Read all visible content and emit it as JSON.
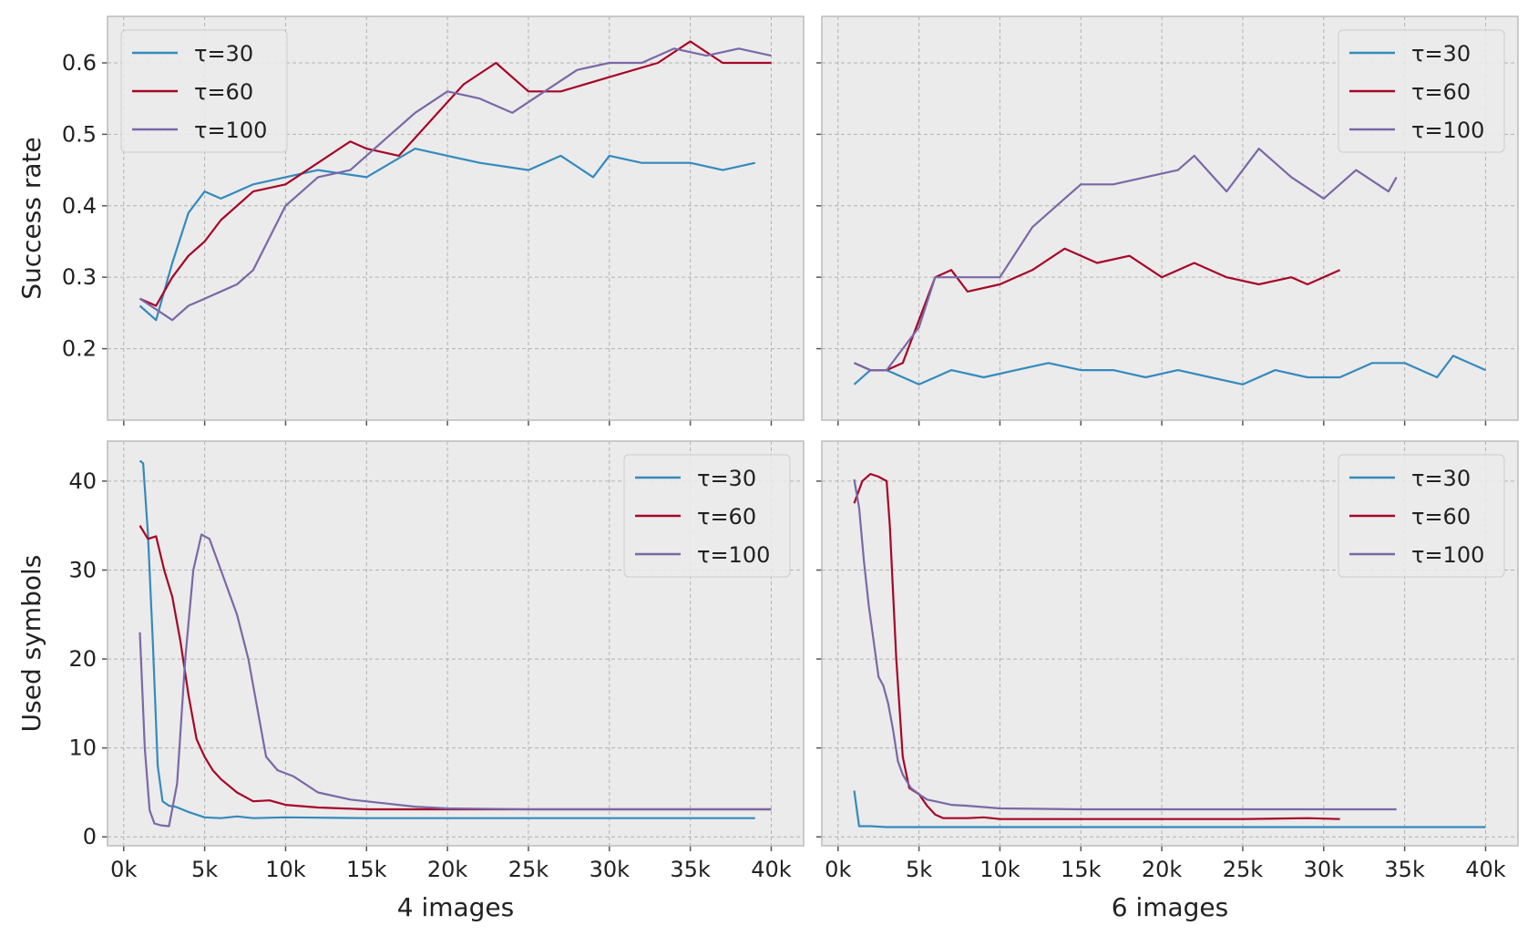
{
  "colors": {
    "tau30": "#348ABD",
    "tau60": "#A60628",
    "tau100": "#7A68A6",
    "axes_bg": "#EBEBEB",
    "grid": "#B2B2B2"
  },
  "legend_labels": [
    "τ=30",
    "τ=60",
    "τ=100"
  ],
  "x_tick_labels": [
    "0k",
    "5k",
    "10k",
    "15k",
    "20k",
    "25k",
    "30k",
    "35k",
    "40k"
  ],
  "chart_data": [
    {
      "panel": "top-left",
      "type": "line",
      "xlabel": "",
      "ylabel": "Success rate",
      "xlim": [
        -1000,
        42000
      ],
      "ylim": [
        0.1,
        0.665
      ],
      "yticks": [
        0.2,
        0.3,
        0.4,
        0.5,
        0.6
      ],
      "ytick_labels": [
        "0.2",
        "0.3",
        "0.4",
        "0.5",
        "0.6"
      ],
      "grid": true,
      "legend_position": "top-left",
      "series": [
        {
          "name": "τ=30",
          "x": [
            1000,
            2000,
            3000,
            4000,
            5000,
            6000,
            8000,
            10000,
            12000,
            15000,
            18000,
            20000,
            22000,
            25000,
            27000,
            29000,
            30000,
            32000,
            35000,
            37000,
            39000
          ],
          "y": [
            0.26,
            0.24,
            0.32,
            0.39,
            0.42,
            0.41,
            0.43,
            0.44,
            0.45,
            0.44,
            0.48,
            0.47,
            0.46,
            0.45,
            0.47,
            0.44,
            0.47,
            0.46,
            0.46,
            0.45,
            0.46
          ]
        },
        {
          "name": "τ=60",
          "x": [
            1000,
            2000,
            3000,
            4000,
            5000,
            6000,
            8000,
            10000,
            12000,
            14000,
            15000,
            17000,
            19000,
            21000,
            23000,
            25000,
            27000,
            30000,
            33000,
            35000,
            37000,
            40000
          ],
          "y": [
            0.27,
            0.26,
            0.3,
            0.33,
            0.35,
            0.38,
            0.42,
            0.43,
            0.46,
            0.49,
            0.48,
            0.47,
            0.52,
            0.57,
            0.6,
            0.56,
            0.56,
            0.58,
            0.6,
            0.63,
            0.6,
            0.6
          ]
        },
        {
          "name": "τ=100",
          "x": [
            1000,
            3000,
            4000,
            5000,
            7000,
            8000,
            10000,
            12000,
            14000,
            16000,
            18000,
            20000,
            22000,
            24000,
            26000,
            28000,
            30000,
            32000,
            34000,
            36000,
            38000,
            40000
          ],
          "y": [
            0.27,
            0.24,
            0.26,
            0.27,
            0.29,
            0.31,
            0.4,
            0.44,
            0.45,
            0.49,
            0.53,
            0.56,
            0.55,
            0.53,
            0.56,
            0.59,
            0.6,
            0.6,
            0.62,
            0.61,
            0.62,
            0.61
          ]
        }
      ]
    },
    {
      "panel": "top-right",
      "type": "line",
      "xlabel": "",
      "ylabel": "",
      "xlim": [
        -1000,
        42000
      ],
      "ylim": [
        0.1,
        0.665
      ],
      "yticks": [
        0.2,
        0.3,
        0.4,
        0.5,
        0.6
      ],
      "ytick_labels": [
        "",
        "",
        "",
        "",
        ""
      ],
      "grid": true,
      "legend_position": "top-right",
      "series": [
        {
          "name": "τ=30",
          "x": [
            1000,
            2000,
            3000,
            5000,
            7000,
            9000,
            11000,
            13000,
            15000,
            17000,
            19000,
            21000,
            23000,
            25000,
            27000,
            29000,
            31000,
            33000,
            35000,
            37000,
            38000,
            40000
          ],
          "y": [
            0.15,
            0.17,
            0.17,
            0.15,
            0.17,
            0.16,
            0.17,
            0.18,
            0.17,
            0.17,
            0.16,
            0.17,
            0.16,
            0.15,
            0.17,
            0.16,
            0.16,
            0.18,
            0.18,
            0.16,
            0.19,
            0.17
          ]
        },
        {
          "name": "τ=60",
          "x": [
            1000,
            2000,
            3000,
            4000,
            5000,
            6000,
            7000,
            8000,
            10000,
            12000,
            14000,
            16000,
            18000,
            20000,
            22000,
            24000,
            26000,
            28000,
            29000,
            31000
          ],
          "y": [
            0.18,
            0.17,
            0.17,
            0.18,
            0.24,
            0.3,
            0.31,
            0.28,
            0.29,
            0.31,
            0.34,
            0.32,
            0.33,
            0.3,
            0.32,
            0.3,
            0.29,
            0.3,
            0.29,
            0.31
          ]
        },
        {
          "name": "τ=100",
          "x": [
            1000,
            2000,
            3000,
            4000,
            5000,
            6000,
            8000,
            10000,
            12000,
            14000,
            15000,
            17000,
            19000,
            21000,
            22000,
            24000,
            26000,
            28000,
            30000,
            32000,
            34000,
            34500
          ],
          "y": [
            0.18,
            0.17,
            0.17,
            0.2,
            0.23,
            0.3,
            0.3,
            0.3,
            0.37,
            0.41,
            0.43,
            0.43,
            0.44,
            0.45,
            0.47,
            0.42,
            0.48,
            0.44,
            0.41,
            0.45,
            0.42,
            0.44
          ]
        }
      ]
    },
    {
      "panel": "bottom-left",
      "type": "line",
      "xlabel": "4 images",
      "ylabel": "Used symbols",
      "xlim": [
        -1000,
        42000
      ],
      "ylim": [
        -1,
        44.5
      ],
      "yticks": [
        0,
        10,
        20,
        30,
        40
      ],
      "ytick_labels": [
        "0",
        "10",
        "20",
        "30",
        "40"
      ],
      "grid": true,
      "legend_position": "top-right",
      "series": [
        {
          "name": "τ=30",
          "x": [
            1000,
            1200,
            1500,
            1800,
            2100,
            2400,
            2800,
            3200,
            4000,
            5000,
            6000,
            7000,
            8000,
            10000,
            15000,
            20000,
            25000,
            30000,
            35000,
            39000
          ],
          "y": [
            42.3,
            42,
            34,
            22,
            8,
            4,
            3.5,
            3.4,
            2.8,
            2.2,
            2.1,
            2.3,
            2.1,
            2.2,
            2.1,
            2.1,
            2.1,
            2.1,
            2.1,
            2.1
          ]
        },
        {
          "name": "τ=60",
          "x": [
            1000,
            1500,
            2000,
            2500,
            3000,
            3500,
            4000,
            4500,
            5000,
            5500,
            6000,
            7000,
            8000,
            9000,
            10000,
            12000,
            15000,
            20000,
            25000,
            30000,
            40000
          ],
          "y": [
            35,
            33.5,
            33.8,
            30,
            27,
            22,
            16,
            11,
            9,
            7.5,
            6.5,
            5,
            4,
            4.1,
            3.6,
            3.3,
            3.1,
            3.1,
            3.1,
            3.1,
            3.1
          ]
        },
        {
          "name": "τ=100",
          "x": [
            1000,
            1300,
            1600,
            1900,
            2300,
            2800,
            3300,
            3800,
            4300,
            4800,
            5300,
            6000,
            7000,
            7700,
            8300,
            8800,
            9500,
            10500,
            12000,
            14000,
            16000,
            18000,
            20000,
            25000,
            30000,
            40000
          ],
          "y": [
            23,
            10,
            3,
            1.5,
            1.3,
            1.2,
            6,
            20,
            30,
            34,
            33.5,
            30,
            25,
            20,
            14,
            9,
            7.5,
            6.8,
            5,
            4.2,
            3.8,
            3.4,
            3.2,
            3.1,
            3.1,
            3.1
          ]
        }
      ]
    },
    {
      "panel": "bottom-right",
      "type": "line",
      "xlabel": "6 images",
      "ylabel": "",
      "xlim": [
        -1000,
        42000
      ],
      "ylim": [
        -1,
        44.5
      ],
      "yticks": [
        0,
        10,
        20,
        30,
        40
      ],
      "ytick_labels": [
        "",
        "",
        "",
        "",
        ""
      ],
      "grid": true,
      "legend_position": "top-right",
      "series": [
        {
          "name": "τ=30",
          "x": [
            1000,
            1300,
            1600,
            2000,
            3000,
            40000
          ],
          "y": [
            5.2,
            1.2,
            1.2,
            1.2,
            1.1,
            1.1
          ]
        },
        {
          "name": "τ=60",
          "x": [
            1000,
            1500,
            2000,
            2500,
            3000,
            3200,
            3600,
            4000,
            4400,
            5000,
            5500,
            6000,
            6500,
            7000,
            8000,
            9000,
            10000,
            15000,
            20000,
            25000,
            29000,
            31000
          ],
          "y": [
            37.5,
            40,
            40.8,
            40.5,
            40,
            35,
            20,
            9,
            5.5,
            4.8,
            3.5,
            2.5,
            2.1,
            2.1,
            2.1,
            2.2,
            2,
            2,
            2,
            2,
            2.1,
            2
          ]
        },
        {
          "name": "τ=100",
          "x": [
            1000,
            1300,
            1600,
            1900,
            2200,
            2500,
            2800,
            3100,
            3400,
            3700,
            4000,
            4500,
            5000,
            5500,
            6000,
            7000,
            8000,
            10000,
            15000,
            20000,
            30000,
            34500
          ],
          "y": [
            40.2,
            37,
            31,
            26,
            22,
            18,
            17,
            15,
            12,
            8.5,
            7,
            5.5,
            4.8,
            4.2,
            4,
            3.6,
            3.5,
            3.2,
            3.1,
            3.1,
            3.1,
            3.1
          ]
        }
      ]
    }
  ]
}
